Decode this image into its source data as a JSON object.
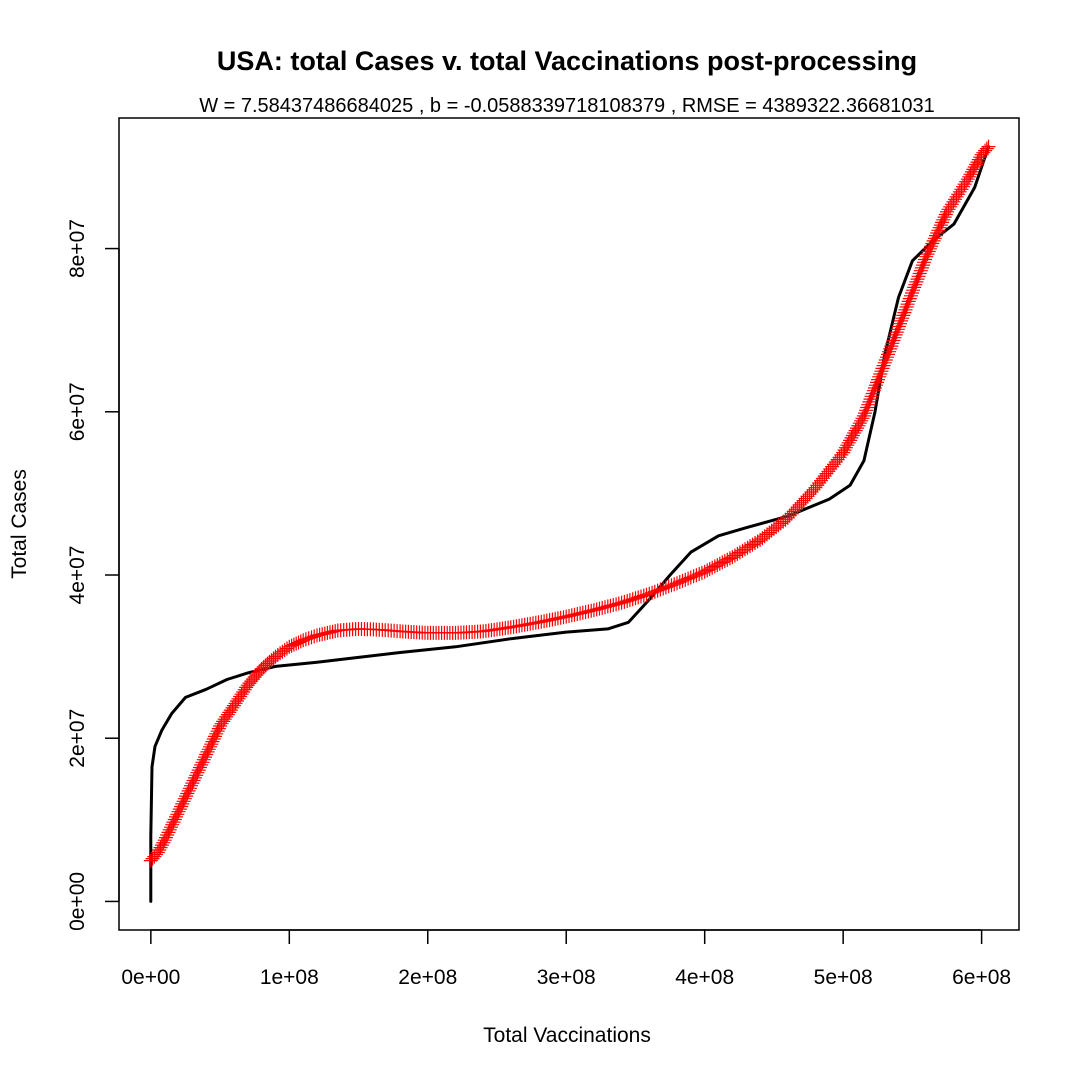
{
  "chart_data": {
    "type": "line",
    "title": "USA: total Cases v. total Vaccinations post-processing",
    "subtitle": "W = 7.58437486684025 , b = -0.0588339718108379 , RMSE = 4389322.36681031",
    "xlabel": "Total Vaccinations",
    "ylabel": "Total Cases",
    "xlim": [
      -23000000,
      627000000
    ],
    "ylim": [
      -3500000,
      96000000
    ],
    "x_ticks": [
      0,
      100000000,
      200000000,
      300000000,
      400000000,
      500000000,
      600000000
    ],
    "x_tick_labels": [
      "0e+00",
      "1e+08",
      "2e+08",
      "3e+08",
      "4e+08",
      "5e+08",
      "6e+08"
    ],
    "y_ticks": [
      0,
      20000000,
      40000000,
      60000000,
      80000000
    ],
    "y_tick_labels": [
      "0e+00",
      "2e+07",
      "4e+07",
      "6e+07",
      "8e+07"
    ],
    "grid": false,
    "legend": "none",
    "series": [
      {
        "style": "line",
        "color": "#000000",
        "points": [
          [
            0,
            0
          ],
          [
            0,
            8000000
          ],
          [
            500000,
            13000000
          ],
          [
            800000,
            16500000
          ],
          [
            3000000,
            19000000
          ],
          [
            8000000,
            21000000
          ],
          [
            15000000,
            23000000
          ],
          [
            25000000,
            25000000
          ],
          [
            40000000,
            26000000
          ],
          [
            55000000,
            27200000
          ],
          [
            70000000,
            28000000
          ],
          [
            90000000,
            28800000
          ],
          [
            120000000,
            29300000
          ],
          [
            150000000,
            29900000
          ],
          [
            180000000,
            30500000
          ],
          [
            220000000,
            31200000
          ],
          [
            260000000,
            32200000
          ],
          [
            300000000,
            33000000
          ],
          [
            330000000,
            33400000
          ],
          [
            345000000,
            34200000
          ],
          [
            360000000,
            37000000
          ],
          [
            375000000,
            40000000
          ],
          [
            390000000,
            42800000
          ],
          [
            410000000,
            44800000
          ],
          [
            430000000,
            45800000
          ],
          [
            460000000,
            47200000
          ],
          [
            490000000,
            49300000
          ],
          [
            505000000,
            51000000
          ],
          [
            515000000,
            54000000
          ],
          [
            523000000,
            60000000
          ],
          [
            530000000,
            67000000
          ],
          [
            540000000,
            74000000
          ],
          [
            550000000,
            78500000
          ],
          [
            565000000,
            81000000
          ],
          [
            580000000,
            83000000
          ],
          [
            595000000,
            87500000
          ],
          [
            605000000,
            92500000
          ]
        ]
      },
      {
        "style": "points",
        "marker": "+",
        "color": "#ff0000",
        "points": [
          [
            0,
            5000000
          ],
          [
            5000000,
            6000000
          ],
          [
            10000000,
            7500000
          ],
          [
            20000000,
            11000000
          ],
          [
            30000000,
            14500000
          ],
          [
            40000000,
            18000000
          ],
          [
            50000000,
            21500000
          ],
          [
            60000000,
            24000000
          ],
          [
            70000000,
            26500000
          ],
          [
            80000000,
            28500000
          ],
          [
            90000000,
            30000000
          ],
          [
            100000000,
            31200000
          ],
          [
            110000000,
            32000000
          ],
          [
            120000000,
            32600000
          ],
          [
            135000000,
            33200000
          ],
          [
            150000000,
            33400000
          ],
          [
            165000000,
            33300000
          ],
          [
            180000000,
            33100000
          ],
          [
            200000000,
            32900000
          ],
          [
            220000000,
            32900000
          ],
          [
            240000000,
            33100000
          ],
          [
            260000000,
            33600000
          ],
          [
            280000000,
            34200000
          ],
          [
            300000000,
            34900000
          ],
          [
            320000000,
            35700000
          ],
          [
            340000000,
            36600000
          ],
          [
            360000000,
            37700000
          ],
          [
            380000000,
            39000000
          ],
          [
            400000000,
            40400000
          ],
          [
            420000000,
            42200000
          ],
          [
            440000000,
            44300000
          ],
          [
            460000000,
            47000000
          ],
          [
            480000000,
            50700000
          ],
          [
            500000000,
            55000000
          ],
          [
            515000000,
            59500000
          ],
          [
            530000000,
            66000000
          ],
          [
            545000000,
            72500000
          ],
          [
            560000000,
            79000000
          ],
          [
            575000000,
            84500000
          ],
          [
            590000000,
            88500000
          ],
          [
            600000000,
            91500000
          ],
          [
            605000000,
            92500000
          ]
        ]
      }
    ]
  }
}
